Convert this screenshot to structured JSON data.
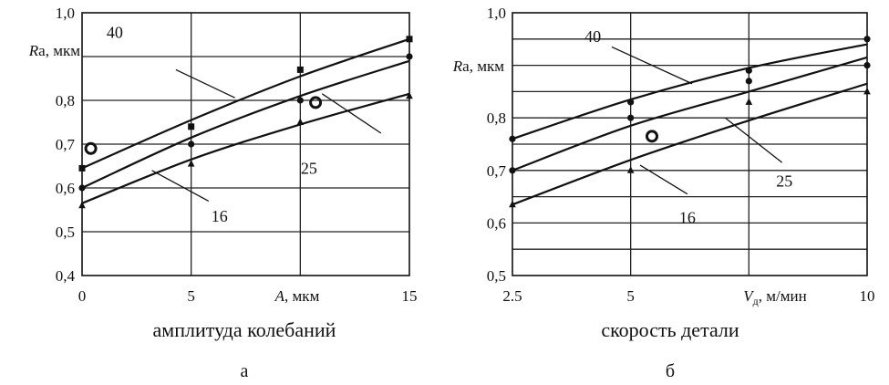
{
  "chart_data": [
    {
      "id": "a",
      "type": "line",
      "panel_label": "а",
      "caption": "амплитуда колебаний",
      "xlabel_italic": "A",
      "xlabel_rest": ", мкм",
      "ylabel_italic": "R",
      "ylabel_rest": "a, мкм",
      "xlim": [
        0,
        15
      ],
      "ylim": [
        0.4,
        1.0
      ],
      "x_ticks": [
        {
          "v": 0,
          "label": "0"
        },
        {
          "v": 5,
          "label": "5"
        },
        {
          "v": 15,
          "label": "15"
        }
      ],
      "y_ticks": [
        {
          "v": 0.4,
          "label": "0,4"
        },
        {
          "v": 0.5,
          "label": "0,5"
        },
        {
          "v": 0.6,
          "label": "0,6"
        },
        {
          "v": 0.7,
          "label": "0,7"
        },
        {
          "v": 0.8,
          "label": "0,8"
        },
        {
          "v": 1.0,
          "label": "1,0"
        }
      ],
      "hgrid": [
        0.5,
        0.6,
        0.7,
        0.8,
        0.9
      ],
      "vgrid": [
        5,
        10
      ],
      "series": [
        {
          "name": "40",
          "marker": "square",
          "x": [
            0,
            5,
            10,
            15
          ],
          "y": [
            0.645,
            0.755,
            0.855,
            0.94
          ],
          "points": [
            [
              0,
              0.645
            ],
            [
              5,
              0.74
            ],
            [
              10,
              0.87
            ],
            [
              15,
              0.94
            ]
          ]
        },
        {
          "name": "25",
          "marker": "circle",
          "x": [
            0,
            5,
            10,
            15
          ],
          "y": [
            0.6,
            0.715,
            0.81,
            0.89
          ],
          "points": [
            [
              0,
              0.6
            ],
            [
              5,
              0.7
            ],
            [
              10,
              0.8
            ],
            [
              15,
              0.9
            ]
          ]
        },
        {
          "name": "16",
          "marker": "triangle",
          "x": [
            0,
            5,
            10,
            15
          ],
          "y": [
            0.565,
            0.665,
            0.745,
            0.815
          ],
          "points": [
            [
              0,
              0.56
            ],
            [
              5,
              0.655
            ],
            [
              10,
              0.75
            ],
            [
              15,
              0.81
            ]
          ]
        }
      ],
      "curve_labels": [
        {
          "text": "40",
          "x": 1.5,
          "y": 0.955
        },
        {
          "text": "25",
          "x": 10.4,
          "y": 0.645
        },
        {
          "text": "16",
          "x": 6.3,
          "y": 0.535
        }
      ],
      "leaders": [
        {
          "x1": 4.3,
          "y1": 0.87,
          "x2": 7.0,
          "y2": 0.806
        },
        {
          "x1": 11.0,
          "y1": 0.815,
          "x2": 13.7,
          "y2": 0.725
        },
        {
          "x1": 3.2,
          "y1": 0.64,
          "x2": 5.8,
          "y2": 0.57
        }
      ],
      "open_circles": [
        [
          0.4,
          0.69
        ],
        [
          10.7,
          0.795
        ]
      ]
    },
    {
      "id": "b",
      "type": "line",
      "panel_label": "б",
      "caption": "скорость детали",
      "xlabel_italic": "V",
      "xlabel_sub": "д",
      "xlabel_rest": ", м/мин",
      "ylabel_italic": "R",
      "ylabel_rest": "a, мкм",
      "xlim": [
        2.5,
        10
      ],
      "ylim": [
        0.5,
        1.0
      ],
      "x_ticks": [
        {
          "v": 2.5,
          "label": "2.5"
        },
        {
          "v": 5,
          "label": "5"
        },
        {
          "v": 10,
          "label": "10"
        }
      ],
      "y_ticks": [
        {
          "v": 0.5,
          "label": "0,5"
        },
        {
          "v": 0.6,
          "label": "0,6"
        },
        {
          "v": 0.7,
          "label": "0,7"
        },
        {
          "v": 0.8,
          "label": "0,8"
        },
        {
          "v": 1.0,
          "label": "1,0"
        }
      ],
      "hgrid": [
        0.55,
        0.6,
        0.65,
        0.7,
        0.75,
        0.8,
        0.85,
        0.9,
        0.95
      ],
      "vgrid": [
        5,
        7.5
      ],
      "series": [
        {
          "name": "40",
          "marker": "circle",
          "x": [
            2.5,
            5,
            7.5,
            10
          ],
          "y": [
            0.76,
            0.835,
            0.895,
            0.94
          ],
          "points": [
            [
              2.5,
              0.76
            ],
            [
              5,
              0.83
            ],
            [
              7.5,
              0.89
            ],
            [
              10,
              0.95
            ]
          ]
        },
        {
          "name": "25",
          "marker": "circle",
          "x": [
            2.5,
            5,
            7.5,
            10
          ],
          "y": [
            0.7,
            0.785,
            0.85,
            0.915
          ],
          "points": [
            [
              2.5,
              0.7
            ],
            [
              5,
              0.8
            ],
            [
              7.5,
              0.87
            ],
            [
              10,
              0.9
            ]
          ]
        },
        {
          "name": "16",
          "marker": "triangle",
          "x": [
            2.5,
            5,
            7.5,
            10
          ],
          "y": [
            0.635,
            0.72,
            0.795,
            0.865
          ],
          "points": [
            [
              2.5,
              0.635
            ],
            [
              5,
              0.7
            ],
            [
              7.5,
              0.83
            ],
            [
              10,
              0.85
            ]
          ]
        }
      ],
      "curve_labels": [
        {
          "text": "40",
          "x": 4.2,
          "y": 0.955
        },
        {
          "text": "25",
          "x": 8.25,
          "y": 0.68
        },
        {
          "text": "16",
          "x": 6.2,
          "y": 0.61
        }
      ],
      "leaders": [
        {
          "x1": 4.6,
          "y1": 0.935,
          "x2": 6.3,
          "y2": 0.865
        },
        {
          "x1": 7.0,
          "y1": 0.8,
          "x2": 8.2,
          "y2": 0.715
        },
        {
          "x1": 5.2,
          "y1": 0.71,
          "x2": 6.2,
          "y2": 0.655
        }
      ],
      "open_circles": [
        [
          5.45,
          0.765
        ]
      ]
    }
  ]
}
